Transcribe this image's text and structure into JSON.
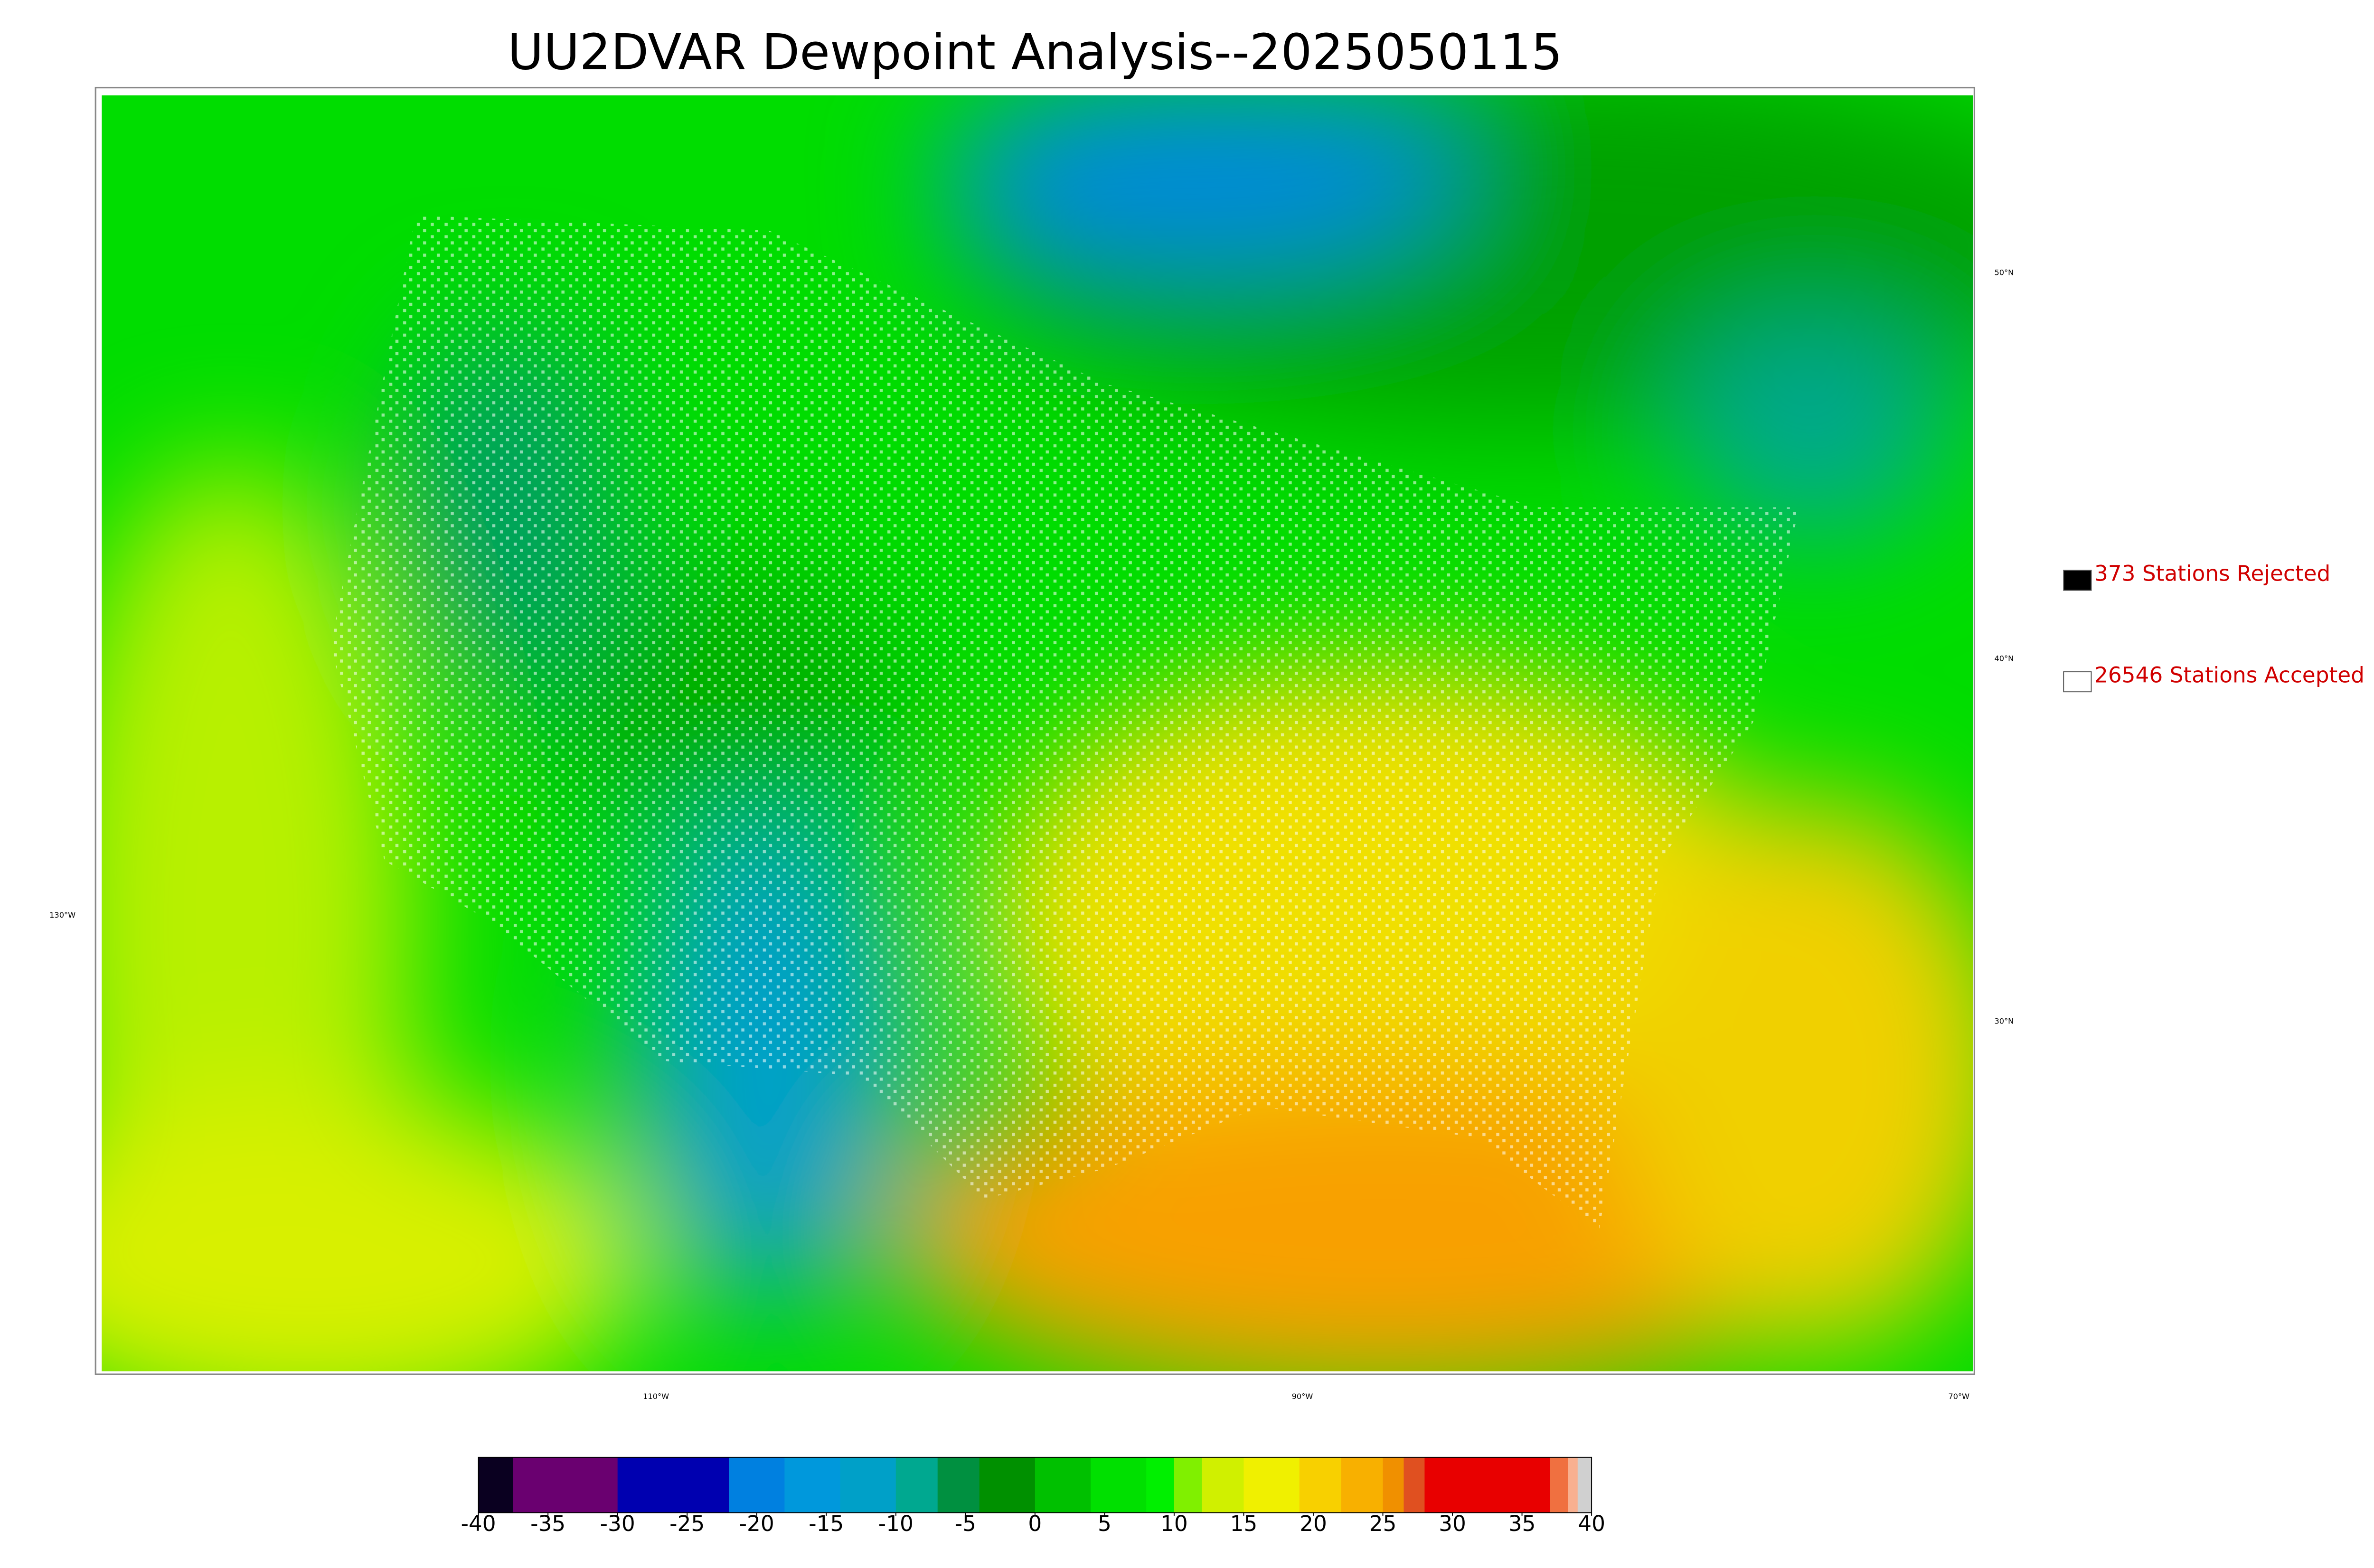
{
  "title": "UU2DVAR Dewpoint Analysis--2025050115",
  "legend": [
    {
      "label": "373 Stations Rejected",
      "color": "#000000"
    },
    {
      "label": "26546 Stations Accepted",
      "color": "#ffffff"
    }
  ],
  "graticule_labels": [
    "50°N",
    "40°N",
    "30°N",
    "130°W",
    "110°W",
    "90°W",
    "70°W"
  ],
  "colorbar": {
    "range": [
      -40,
      40
    ],
    "ticks": [
      -40,
      -35,
      -30,
      -25,
      -20,
      -15,
      -10,
      -5,
      0,
      5,
      10,
      15,
      20,
      25,
      30,
      35,
      40
    ],
    "bounds": [
      -40,
      -37.5,
      -30,
      -22,
      -18,
      -14,
      -10,
      -7,
      -4,
      0,
      4,
      8,
      10,
      12,
      15,
      19,
      22,
      25,
      26.5,
      28,
      37,
      38.3,
      39,
      40
    ],
    "colors": [
      "#0a0020",
      "#6a0070",
      "#0000b0",
      "#0080e0",
      "#0098dc",
      "#00a0c8",
      "#00a890",
      "#009040",
      "#009000",
      "#00c000",
      "#00e000",
      "#00f000",
      "#80f000",
      "#d0f000",
      "#f0f000",
      "#f8d000",
      "#f8b000",
      "#f09000",
      "#e05020",
      "#e80000",
      "#f07040",
      "#f8b090",
      "#d0d0d0"
    ]
  }
}
